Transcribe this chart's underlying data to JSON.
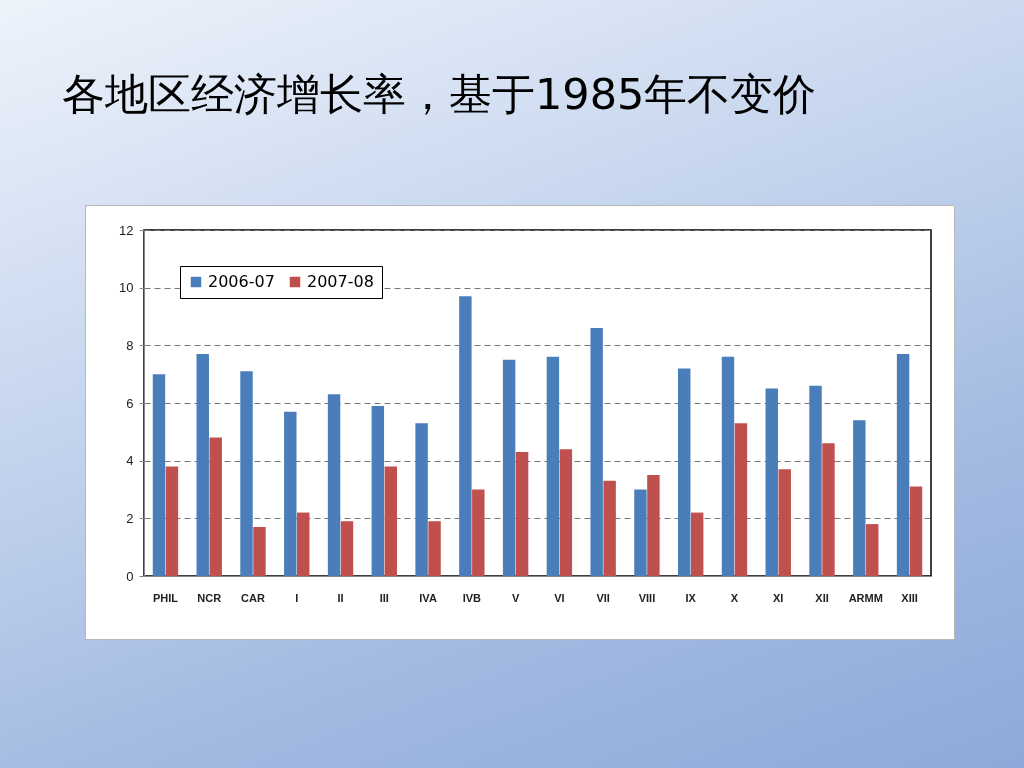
{
  "chart_data": {
    "type": "bar",
    "title": "各地区经济增长率，基于1985年不变价",
    "categories": [
      "PHIL",
      "NCR",
      "CAR",
      "I",
      "II",
      "III",
      "IVA",
      "IVB",
      "V",
      "VI",
      "VII",
      "VIII",
      "IX",
      "X",
      "XI",
      "XII",
      "ARMM",
      "XIII"
    ],
    "series": [
      {
        "name": "2006-07",
        "color": "#4a7ebb",
        "values": [
          7.0,
          7.7,
          7.1,
          5.7,
          6.3,
          5.9,
          5.3,
          9.7,
          7.5,
          7.6,
          8.6,
          3.0,
          7.2,
          7.6,
          6.5,
          6.6,
          5.4,
          7.7
        ]
      },
      {
        "name": "2007-08",
        "color": "#c0504d",
        "values": [
          3.8,
          4.8,
          1.7,
          2.2,
          1.9,
          3.8,
          1.9,
          3.0,
          4.3,
          4.4,
          3.3,
          3.5,
          2.2,
          5.3,
          3.7,
          4.6,
          1.8,
          3.1
        ]
      }
    ],
    "ylim": [
      0,
      12
    ],
    "yticks": [
      0,
      2,
      4,
      6,
      8,
      10,
      12
    ],
    "grid": "y",
    "legend": "top left"
  }
}
